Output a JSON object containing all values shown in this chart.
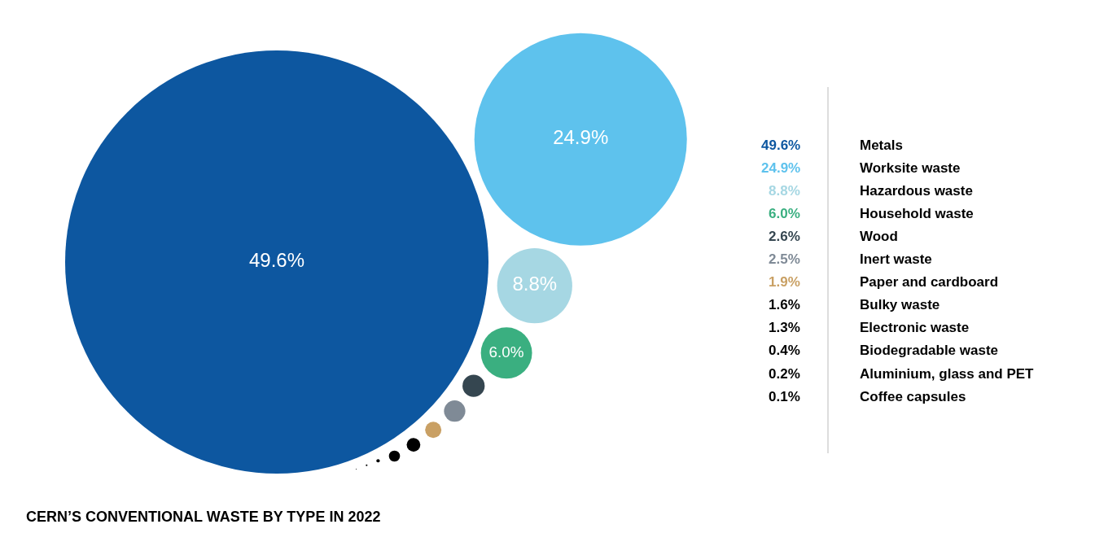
{
  "chart_data": {
    "type": "other",
    "title": "CERN’S CONVENTIONAL WASTE BY TYPE IN 2022",
    "categories": [
      "Metals",
      "Worksite waste",
      "Hazardous waste",
      "Household waste",
      "Wood",
      "Inert waste",
      "Paper and cardboard",
      "Bulky waste",
      "Electronic waste",
      "Biodegradable waste",
      "Aluminium, glass and PET",
      "Coffee capsules"
    ],
    "values": [
      49.6,
      24.9,
      8.8,
      6.0,
      2.6,
      2.5,
      1.9,
      1.6,
      1.3,
      0.4,
      0.2,
      0.1
    ],
    "value_labels": [
      "49.6%",
      "24.9%",
      "8.8%",
      "6.0%",
      "2.6%",
      "2.5%",
      "1.9%",
      "1.6%",
      "1.3%",
      "0.4%",
      "0.2%",
      "0.1%"
    ],
    "colors": [
      "#0d57a0",
      "#5ec2ed",
      "#a6d7e3",
      "#3aaf80",
      "#354650",
      "#7f8a96",
      "#c9a064",
      "#000000",
      "#000000",
      "#000000",
      "#000000",
      "#000000"
    ]
  }
}
